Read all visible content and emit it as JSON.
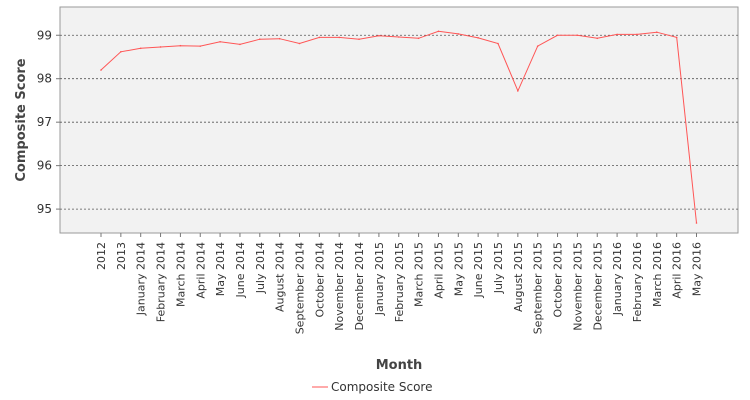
{
  "chart_data": {
    "type": "line",
    "xlabel": "Month",
    "ylabel": "Composite Score",
    "ylim": [
      94.45,
      99.65
    ],
    "yticks": [
      95,
      96,
      97,
      98,
      99
    ],
    "grid": "horizontal-dashed",
    "legend_position": "bottom",
    "series_color": "#ff5555",
    "plot_background": "#f2f2f2",
    "x": [
      "2012",
      "2013",
      "January 2014",
      "February 2014",
      "March 2014",
      "April 2014",
      "May 2014",
      "June 2014",
      "July 2014",
      "August 2014",
      "September 2014",
      "October 2014",
      "November 2014",
      "December 2014",
      "January 2015",
      "February 2015",
      "March 2015",
      "April 2015",
      "May 2015",
      "June 2015",
      "July 2015",
      "August 2015",
      "September 2015",
      "October 2015",
      "November 2015",
      "December 2015",
      "January 2016",
      "February 2016",
      "March 2016",
      "April 2016",
      "May 2016"
    ],
    "series": [
      {
        "name": "Composite Score",
        "values": [
          98.2,
          98.62,
          98.7,
          98.73,
          98.76,
          98.75,
          98.85,
          98.79,
          98.91,
          98.92,
          98.81,
          98.95,
          98.95,
          98.91,
          98.99,
          98.96,
          98.93,
          99.09,
          99.03,
          98.94,
          98.81,
          97.72,
          98.75,
          99.0,
          99.0,
          98.93,
          99.02,
          99.02,
          99.07,
          98.95,
          94.68
        ]
      }
    ]
  }
}
